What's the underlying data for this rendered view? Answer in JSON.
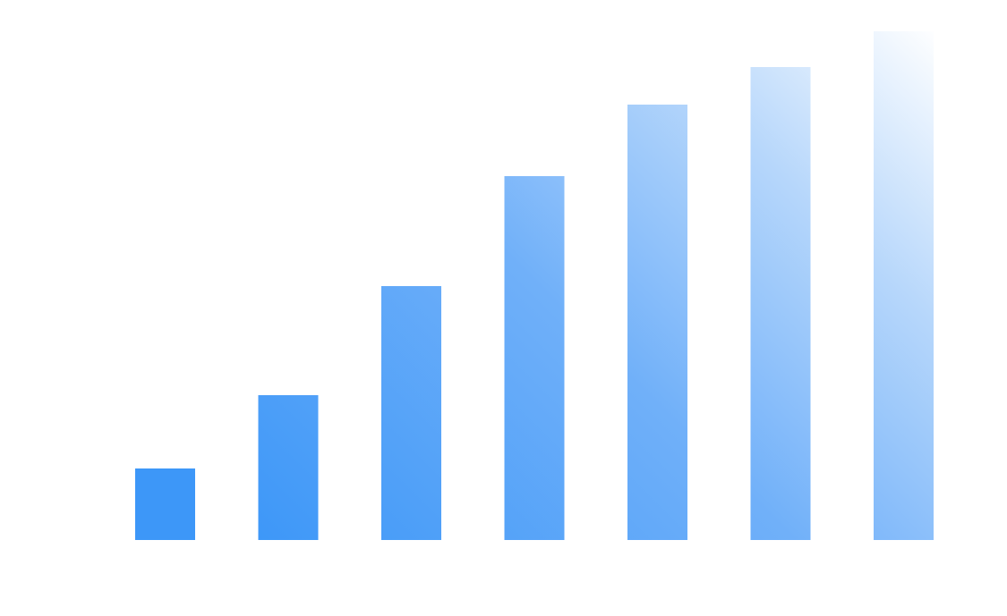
{
  "chart_data": {
    "type": "bar",
    "title": "",
    "xlabel": "",
    "ylabel": "",
    "values": [
      80,
      162,
      284,
      407,
      487,
      529,
      569
    ],
    "ylim": [
      0,
      569
    ],
    "grid": false,
    "legend": "none",
    "colors": {
      "gradient_start": "#3d97f8",
      "gradient_end": "#ffffff"
    }
  }
}
